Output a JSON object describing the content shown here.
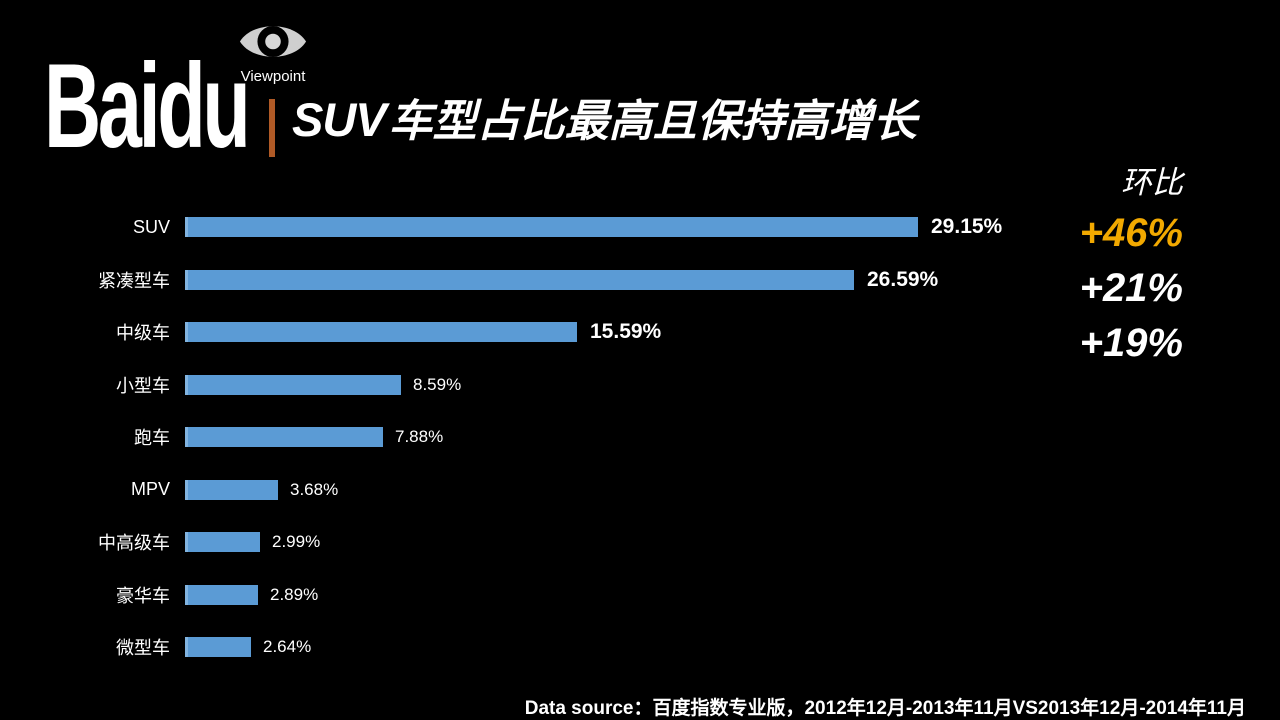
{
  "brand": {
    "logo_text": "Baidu",
    "viewpoint_label": "Viewpoint",
    "divider_color": "#B05A26",
    "eye_icon_color": "#CFCFCF"
  },
  "header": {
    "title_prefix": "SUV",
    "title_rest": "车型占比最高且保持高增长"
  },
  "chart_data": {
    "type": "bar",
    "orientation": "horizontal",
    "title": "SUV车型占比最高且保持高增长",
    "categories": [
      "SUV",
      "紧凑型车",
      "中级车",
      "小型车",
      "跑车",
      "MPV",
      "中高级车",
      "豪华车",
      "微型车"
    ],
    "values": [
      29.15,
      26.59,
      15.59,
      8.59,
      7.88,
      3.68,
      2.99,
      2.89,
      2.64
    ],
    "value_labels": [
      "29.15%",
      "26.59%",
      "15.59%",
      "8.59%",
      "7.88%",
      "3.68%",
      "2.99%",
      "2.89%",
      "2.64%"
    ],
    "emphasized_rows": [
      0,
      1,
      2
    ],
    "bar_color": "#5B9BD5",
    "bar_edge_color": "#82B4E0",
    "xlim": [
      0,
      30
    ],
    "grid": false,
    "legend": false
  },
  "growth_panel": {
    "title": "环比",
    "items": [
      {
        "label": "+46%",
        "color": "#F2A900"
      },
      {
        "label": "+21%",
        "color": "#FFFFFF"
      },
      {
        "label": "+19%",
        "color": "#FFFFFF"
      }
    ]
  },
  "footer": {
    "source_text": "Data source：百度指数专业版，2012年12月-2013年11月VS2013年12月-2014年11月"
  }
}
